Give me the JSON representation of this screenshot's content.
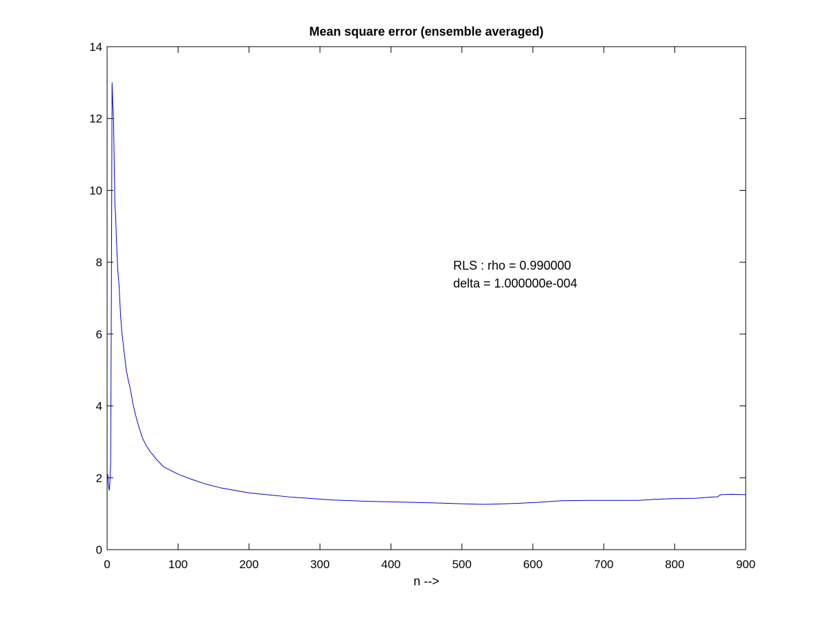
{
  "chart_data": {
    "type": "line",
    "title": "Mean square error (ensemble averaged)",
    "xlabel": "n -->",
    "ylabel": "",
    "xlim": [
      0,
      900
    ],
    "ylim": [
      0,
      14
    ],
    "xticks": [
      0,
      100,
      200,
      300,
      400,
      500,
      600,
      700,
      800,
      900
    ],
    "yticks": [
      0,
      2,
      4,
      6,
      8,
      10,
      12,
      14
    ],
    "grid": false,
    "annotations": [
      "RLS : rho = 0.990000",
      "delta = 1.000000e-004"
    ],
    "series": [
      {
        "color": "#0000cc",
        "points": [
          [
            1,
            2.1
          ],
          [
            2,
            1.75
          ],
          [
            3,
            1.65
          ],
          [
            4,
            1.9
          ],
          [
            5,
            2.4
          ],
          [
            6,
            7.0
          ],
          [
            7,
            13.0
          ],
          [
            8,
            12.4
          ],
          [
            9,
            12.0
          ],
          [
            10,
            10.8
          ],
          [
            11,
            9.6
          ],
          [
            12,
            9.3
          ],
          [
            13,
            8.7
          ],
          [
            14,
            8.2
          ],
          [
            15,
            7.8
          ],
          [
            17,
            7.3
          ],
          [
            19,
            6.5
          ],
          [
            21,
            6.0
          ],
          [
            24,
            5.5
          ],
          [
            27,
            5.0
          ],
          [
            30,
            4.7
          ],
          [
            33,
            4.45
          ],
          [
            36,
            4.1
          ],
          [
            40,
            3.75
          ],
          [
            45,
            3.4
          ],
          [
            50,
            3.1
          ],
          [
            55,
            2.9
          ],
          [
            60,
            2.75
          ],
          [
            70,
            2.5
          ],
          [
            80,
            2.3
          ],
          [
            90,
            2.2
          ],
          [
            100,
            2.1
          ],
          [
            120,
            1.95
          ],
          [
            140,
            1.82
          ],
          [
            160,
            1.72
          ],
          [
            180,
            1.65
          ],
          [
            200,
            1.58
          ],
          [
            230,
            1.52
          ],
          [
            260,
            1.46
          ],
          [
            290,
            1.42
          ],
          [
            320,
            1.38
          ],
          [
            360,
            1.35
          ],
          [
            400,
            1.33
          ],
          [
            440,
            1.31
          ],
          [
            480,
            1.29
          ],
          [
            510,
            1.27
          ],
          [
            530,
            1.26
          ],
          [
            550,
            1.27
          ],
          [
            580,
            1.29
          ],
          [
            610,
            1.32
          ],
          [
            640,
            1.36
          ],
          [
            680,
            1.37
          ],
          [
            720,
            1.37
          ],
          [
            750,
            1.37
          ],
          [
            770,
            1.4
          ],
          [
            800,
            1.42
          ],
          [
            830,
            1.43
          ],
          [
            850,
            1.46
          ],
          [
            860,
            1.47
          ],
          [
            865,
            1.53
          ],
          [
            880,
            1.54
          ],
          [
            900,
            1.53
          ]
        ]
      }
    ]
  }
}
